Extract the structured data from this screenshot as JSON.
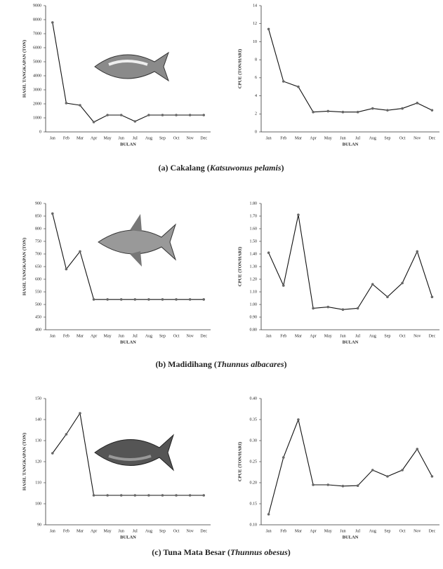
{
  "chart_data": [
    {
      "type": "line",
      "y_label": "HASIL TANGKAPAN (TON)",
      "x_label": "BULAN",
      "categories": [
        "Jan",
        "Feb",
        "Mar",
        "Apr",
        "May",
        "Jun",
        "Jul",
        "Aug",
        "Sep",
        "Oct",
        "Nov",
        "Dec"
      ],
      "values": [
        7800,
        2050,
        1900,
        700,
        1200,
        1200,
        750,
        1200,
        1200,
        1200,
        1200,
        1200
      ],
      "color": "#111111",
      "ylim": [
        0,
        9000
      ],
      "yticks": [
        0,
        1000,
        2000,
        3000,
        4000,
        5000,
        6000,
        7000,
        8000,
        9000
      ]
    },
    {
      "type": "line",
      "y_label": "CPUE (TON/HARI)",
      "x_label": "BULAN",
      "categories": [
        "Jan",
        "Feb",
        "Mar",
        "Apr",
        "May",
        "Jun",
        "Jul",
        "Aug",
        "Sep",
        "Oct",
        "Nov",
        "Dec"
      ],
      "values": [
        11.4,
        5.6,
        5.0,
        2.2,
        2.3,
        2.2,
        2.2,
        2.6,
        2.4,
        2.6,
        3.2,
        2.4
      ],
      "color": "#111111",
      "ylim": [
        0,
        14
      ],
      "yticks": [
        0,
        2,
        4,
        6,
        8,
        10,
        12,
        14
      ]
    },
    {
      "type": "line",
      "y_label": "HASIL TANGKAPAN (TON)",
      "x_label": "BULAN",
      "categories": [
        "Jan",
        "Feb",
        "Mar",
        "Apr",
        "May",
        "Jun",
        "Jul",
        "Aug",
        "Sep",
        "Oct",
        "Nov",
        "Dec"
      ],
      "values": [
        860,
        640,
        710,
        520,
        520,
        520,
        520,
        520,
        520,
        520,
        520,
        520
      ],
      "color": "#111111",
      "ylim": [
        400,
        900
      ],
      "yticks": [
        400,
        450,
        500,
        550,
        600,
        650,
        700,
        750,
        800,
        850,
        900
      ]
    },
    {
      "type": "line",
      "y_label": "CPUE (TON/HARI)",
      "x_label": "BULAN",
      "categories": [
        "Jan",
        "Feb",
        "Mar",
        "Apr",
        "May",
        "Jun",
        "Jul",
        "Aug",
        "Sep",
        "Oct",
        "Nov",
        "Dec"
      ],
      "values": [
        1.41,
        1.15,
        1.71,
        0.97,
        0.98,
        0.96,
        0.97,
        1.16,
        1.06,
        1.17,
        1.42,
        1.06
      ],
      "color": "#111111",
      "ylim": [
        0.8,
        1.8
      ],
      "yticks": [
        {
          "value": 0.8,
          "label": "0.80"
        },
        {
          "value": 0.9,
          "label": "0.90"
        },
        {
          "value": 1.0,
          "label": "1.00"
        },
        {
          "value": 1.1,
          "label": "1.10"
        },
        {
          "value": 1.2,
          "label": "1.20"
        },
        {
          "value": 1.3,
          "label": "1.30"
        },
        {
          "value": 1.4,
          "label": "1.40"
        },
        {
          "value": 1.5,
          "label": "1.50"
        },
        {
          "value": 1.6,
          "label": "1.60"
        },
        {
          "value": 1.7,
          "label": "1.70"
        },
        {
          "value": 1.8,
          "label": "1.80"
        }
      ]
    },
    {
      "type": "line",
      "y_label": "HASIL TANGKAPAN (TON)",
      "x_label": "BULAN",
      "categories": [
        "Jan",
        "Feb",
        "Mar",
        "Apr",
        "May",
        "Jun",
        "Jul",
        "Aug",
        "Sep",
        "Oct",
        "Nov",
        "Dec"
      ],
      "values": [
        124,
        133,
        143,
        104,
        104,
        104,
        104,
        104,
        104,
        104,
        104,
        104
      ],
      "color": "#111111",
      "ylim": [
        90,
        150
      ],
      "yticks": [
        90,
        100,
        110,
        120,
        130,
        140,
        150
      ]
    },
    {
      "type": "line",
      "y_label": "CPUE (TON/HARI)",
      "x_label": "BULAN",
      "categories": [
        "Jan",
        "Feb",
        "Mar",
        "Apr",
        "May",
        "Jun",
        "Jul",
        "Aug",
        "Sep",
        "Oct",
        "Nov",
        "Dec"
      ],
      "values": [
        0.125,
        0.26,
        0.35,
        0.195,
        0.195,
        0.192,
        0.193,
        0.23,
        0.215,
        0.23,
        0.28,
        0.215
      ],
      "color": "#111111",
      "ylim": [
        0.1,
        0.4
      ],
      "yticks": [
        {
          "value": 0.1,
          "label": "0.10"
        },
        {
          "value": 0.15,
          "label": "0.15"
        },
        {
          "value": 0.2,
          "label": "0.20"
        },
        {
          "value": 0.25,
          "label": "0.25"
        },
        {
          "value": 0.3,
          "label": "0.30"
        },
        {
          "value": 0.35,
          "label": "0.35"
        },
        {
          "value": 0.4,
          "label": "0.40"
        }
      ]
    }
  ],
  "captions": [
    [
      "(a) Cakalang (",
      "Katsuwonus pelamis",
      ")"
    ],
    [
      "(b) Madidihang  (",
      "Thunnus albacares",
      ")"
    ],
    [
      "(c) Tuna Mata Besar  (",
      "Thunnus obesus",
      ")"
    ]
  ]
}
